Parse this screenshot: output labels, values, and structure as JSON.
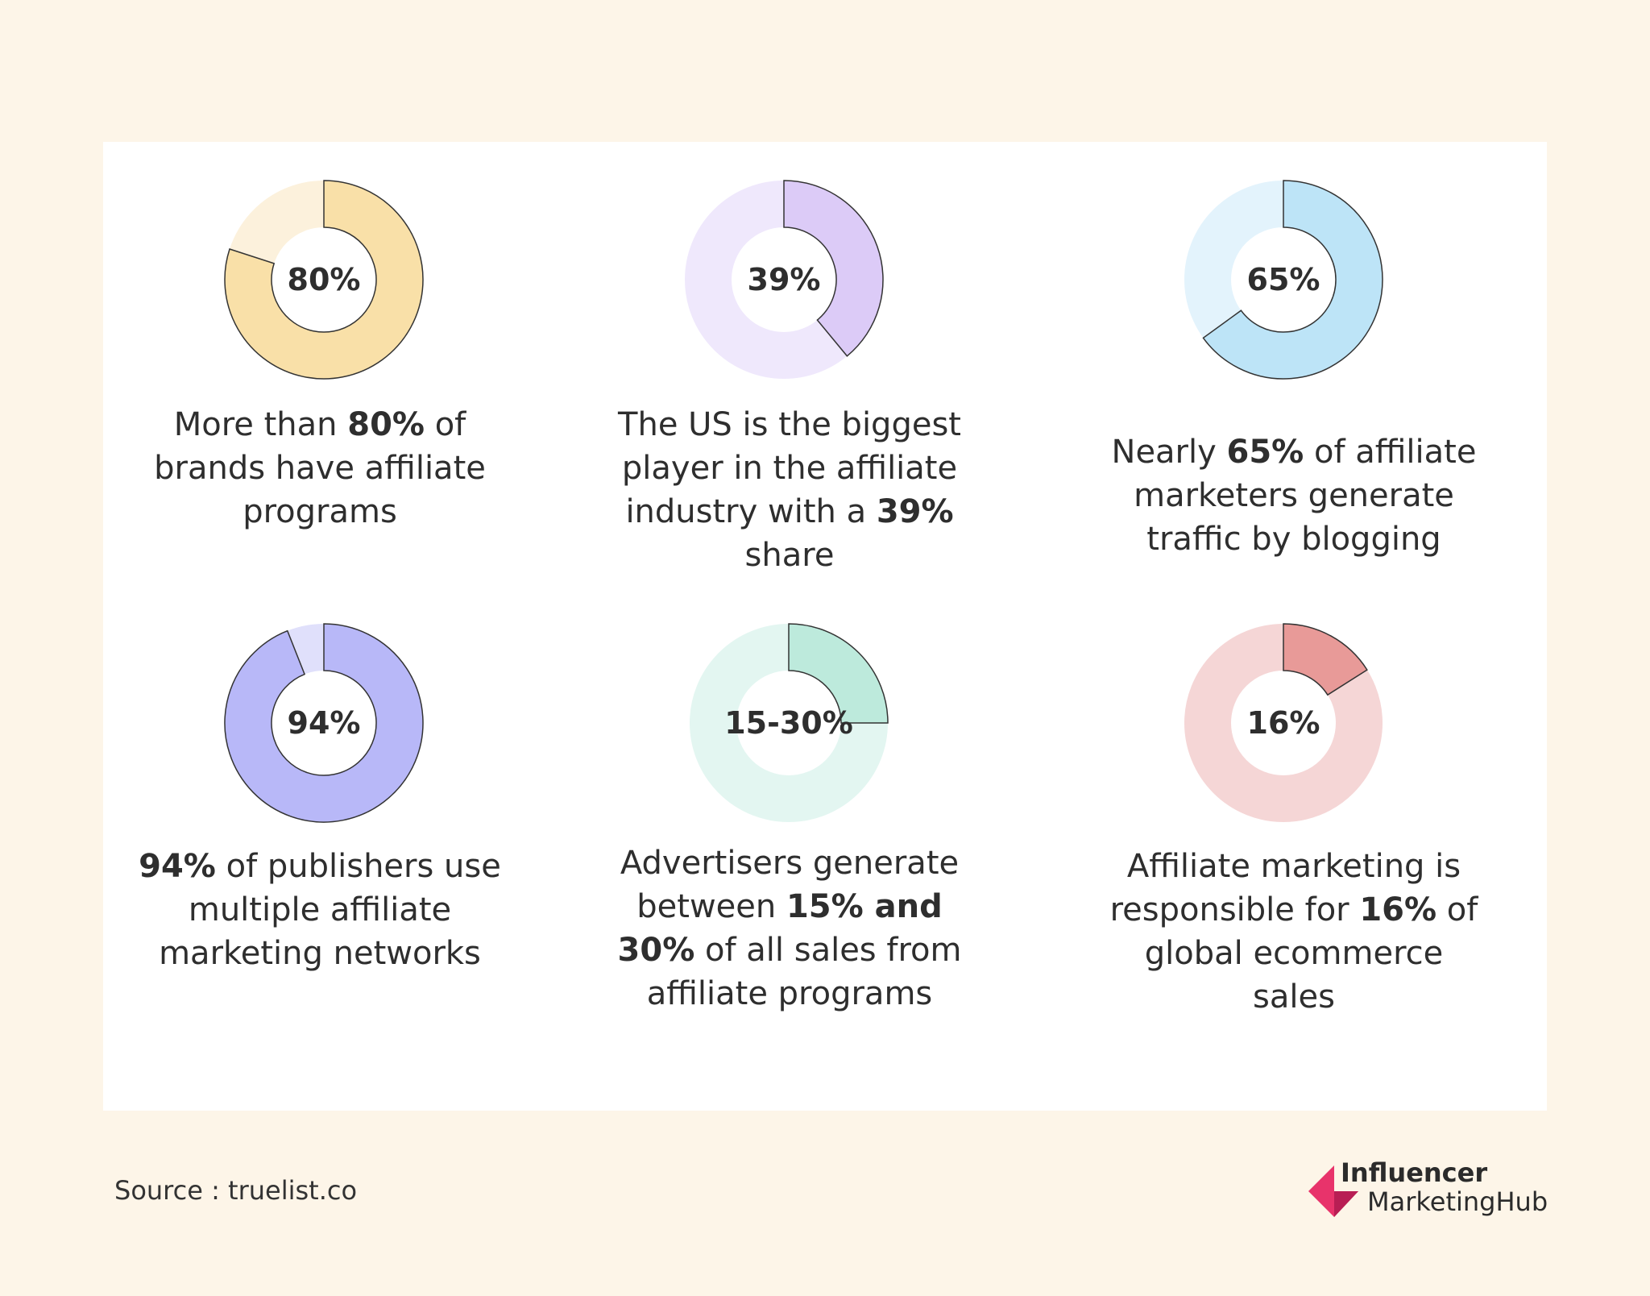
{
  "chart_data": [
    {
      "type": "pie",
      "style": "donut",
      "label": "80%",
      "value": 80,
      "color": "#f9e0a8",
      "track_color": "#fcf1dc",
      "caption": [
        {
          "t": "More than ",
          "b": false
        },
        {
          "t": "80%",
          "b": true
        },
        {
          "t": " of brands have affiliate programs",
          "b": false
        }
      ]
    },
    {
      "type": "pie",
      "style": "donut",
      "label": "39%",
      "value": 39,
      "color": "#dccbf7",
      "track_color": "#efe8fc",
      "caption": [
        {
          "t": "The US  is the biggest player in the affiliate industry with a ",
          "b": false
        },
        {
          "t": "39%",
          "b": true
        },
        {
          "t": " share",
          "b": false
        }
      ]
    },
    {
      "type": "pie",
      "style": "donut",
      "label": "65%",
      "value": 65,
      "color": "#bde4f7",
      "track_color": "#e3f3fc",
      "caption": [
        {
          "t": "Nearly ",
          "b": false
        },
        {
          "t": "65%",
          "b": true
        },
        {
          "t": " of affiliate marketers generate traffic by blogging",
          "b": false
        }
      ]
    },
    {
      "type": "pie",
      "style": "donut",
      "label": "94%",
      "value": 94,
      "color": "#b8b8f8",
      "track_color": "#e0e0fb",
      "caption": [
        {
          "t": "94%",
          "b": true
        },
        {
          "t": " of publishers use multiple affiliate marketing networks",
          "b": false
        }
      ]
    },
    {
      "type": "pie",
      "style": "donut",
      "label": "15-30%",
      "value": 25,
      "color": "#bdeadc",
      "track_color": "#e3f6f1",
      "caption": [
        {
          "t": "Advertisers generate between ",
          "b": false
        },
        {
          "t": "15% and 30%",
          "b": true
        },
        {
          "t": " of all sales from affiliate programs",
          "b": false
        }
      ]
    },
    {
      "type": "pie",
      "style": "donut",
      "label": "16%",
      "value": 16,
      "color": "#e89a98",
      "track_color": "#f5d6d6",
      "caption": [
        {
          "t": "Affiliate marketing is responsible for ",
          "b": false
        },
        {
          "t": "16%",
          "b": true
        },
        {
          "t": " of global ecommerce sales",
          "b": false
        }
      ]
    }
  ],
  "footer": {
    "source": "Source : truelist.co",
    "logo_line1": "Influencer",
    "logo_line2": "MarketingHub",
    "logo_color": "#e8336b"
  }
}
